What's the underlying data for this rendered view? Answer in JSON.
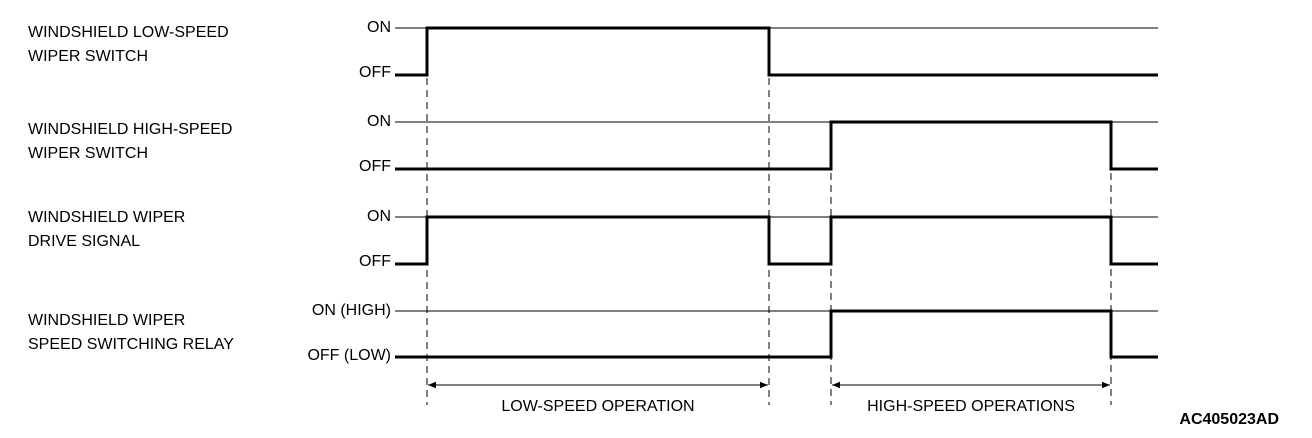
{
  "signals": [
    {
      "label": [
        "WINDSHIELD LOW-SPEED",
        "WIPER SWITCH"
      ],
      "high": "ON",
      "low": "OFF"
    },
    {
      "label": [
        "WINDSHIELD HIGH-SPEED",
        "WIPER SWITCH"
      ],
      "high": "ON",
      "low": "OFF"
    },
    {
      "label": [
        "WINDSHIELD WIPER",
        "DRIVE SIGNAL"
      ],
      "high": "ON",
      "low": "OFF"
    },
    {
      "label": [
        "WINDSHIELD WIPER",
        "SPEED SWITCHING RELAY"
      ],
      "high": "ON (HIGH)",
      "low": "OFF (LOW)"
    }
  ],
  "operations": [
    "LOW-SPEED OPERATION",
    "HIGH-SPEED OPERATIONS"
  ],
  "figure_id": "AC405023AD"
}
